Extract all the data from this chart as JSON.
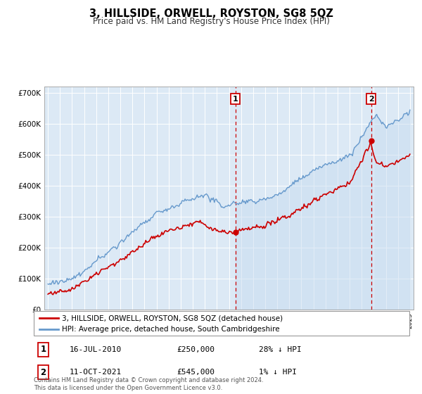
{
  "title": "3, HILLSIDE, ORWELL, ROYSTON, SG8 5QZ",
  "subtitle": "Price paid vs. HM Land Registry's House Price Index (HPI)",
  "ylim": [
    0,
    720000
  ],
  "yticks": [
    0,
    100000,
    200000,
    300000,
    400000,
    500000,
    600000,
    700000
  ],
  "ytick_labels": [
    "£0",
    "£100K",
    "£200K",
    "£300K",
    "£400K",
    "£500K",
    "£600K",
    "£700K"
  ],
  "hpi_color": "#6699cc",
  "price_color": "#cc0000",
  "plot_bg_color": "#dce9f5",
  "shade_color": "#c8dcf0",
  "legend_entry1": "3, HILLSIDE, ORWELL, ROYSTON, SG8 5QZ (detached house)",
  "legend_entry2": "HPI: Average price, detached house, South Cambridgeshire",
  "sale1_date_x": 2010.54,
  "sale1_price": 250000,
  "sale2_date_x": 2021.78,
  "sale2_price": 545000,
  "note": "Contains HM Land Registry data © Crown copyright and database right 2024.\nThis data is licensed under the Open Government Licence v3.0.",
  "table1_date": "16-JUL-2010",
  "table1_price": "£250,000",
  "table1_hpi": "28% ↓ HPI",
  "table2_date": "11-OCT-2021",
  "table2_price": "£545,000",
  "table2_hpi": "1% ↓ HPI",
  "xlim_min": 1994.7,
  "xlim_max": 2025.3
}
